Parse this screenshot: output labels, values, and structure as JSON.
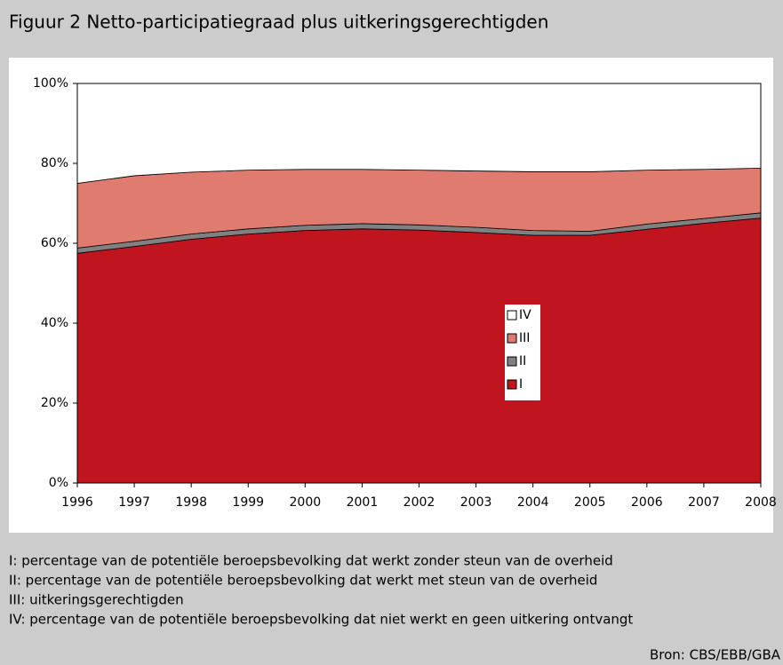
{
  "chart_data": {
    "type": "stacked_area",
    "title": "Figuur 2 Netto-participatiegraad plus uitkeringsgerechtigden",
    "x": [
      1996,
      1997,
      1998,
      1999,
      2000,
      2001,
      2002,
      2003,
      2004,
      2005,
      2006,
      2007,
      2008
    ],
    "xlim": [
      1996,
      2008
    ],
    "xticks": [
      1996,
      1997,
      1998,
      1999,
      2000,
      2001,
      2002,
      2003,
      2004,
      2005,
      2006,
      2007,
      2008
    ],
    "ylim": [
      0,
      100
    ],
    "yticks": [
      {
        "value": 0,
        "label": "0%"
      },
      {
        "value": 20,
        "label": "20%"
      },
      {
        "value": 40,
        "label": "40%"
      },
      {
        "value": 60,
        "label": "60%"
      },
      {
        "value": 80,
        "label": "80%"
      },
      {
        "value": 100,
        "label": "100%"
      }
    ],
    "series": [
      {
        "name": "I",
        "color": "#c0141e",
        "values": [
          57.5,
          59.2,
          61.0,
          62.3,
          63.2,
          63.6,
          63.3,
          62.7,
          62.0,
          62.0,
          63.5,
          65.0,
          66.3
        ]
      },
      {
        "name": "II",
        "color": "#808080",
        "values": [
          1.3,
          1.3,
          1.3,
          1.3,
          1.3,
          1.3,
          1.3,
          1.3,
          1.2,
          1.0,
          1.3,
          1.2,
          1.3
        ]
      },
      {
        "name": "III",
        "color": "#e07b70",
        "values": [
          16.2,
          16.4,
          15.5,
          14.7,
          14.0,
          13.6,
          13.7,
          14.1,
          14.7,
          14.9,
          13.5,
          12.3,
          11.2
        ]
      },
      {
        "name": "IV",
        "color": "#ffffff",
        "values": [
          25.0,
          23.1,
          22.2,
          21.7,
          21.5,
          21.5,
          21.7,
          21.9,
          22.1,
          22.1,
          21.7,
          21.5,
          21.2
        ]
      }
    ],
    "notes": [
      "I: percentage van de potentiële beroepsbevolking dat werkt zonder steun van de overheid",
      "II: percentage van de potentiële beroepsbevolking dat werkt met steun van de overheid",
      "III: uitkeringsgerechtigden",
      "IV: percentage van de potentiële beroepsbevolking dat niet werkt en geen uitkering ontvangt"
    ],
    "source": "Bron: CBS/EBB/GBA"
  }
}
